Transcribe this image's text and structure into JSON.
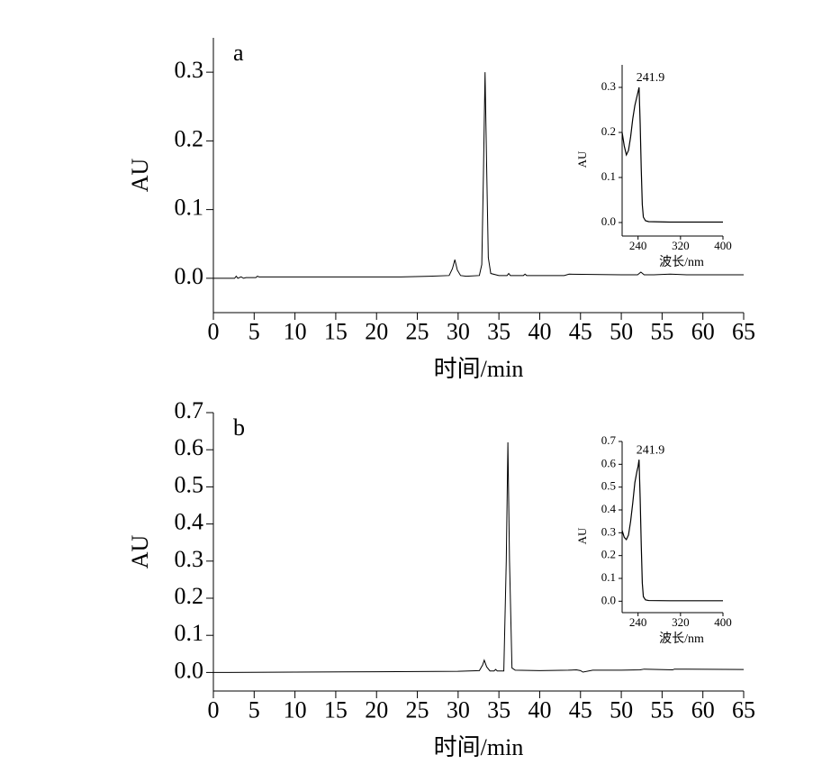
{
  "chart_data": [
    {
      "type": "line",
      "label": "a",
      "x_label": "时间/min",
      "y_label": "AU",
      "color": "#000000",
      "x": [
        0,
        2.6,
        2.8,
        3.0,
        3.4,
        3.7,
        4.0,
        5.2,
        5.4,
        5.6,
        15,
        23,
        26.5,
        28.9,
        29.3,
        29.6,
        29.9,
        30.3,
        31,
        32.6,
        32.9,
        33.1,
        33.3,
        33.5,
        33.7,
        34.0,
        35,
        36,
        36.2,
        36.4,
        38,
        38.2,
        38.4,
        43,
        43.6,
        50,
        52,
        52.4,
        52.8,
        54,
        56,
        58,
        65
      ],
      "values": [
        0,
        0,
        0.003,
        0,
        0.002,
        0,
        0.001,
        0.001,
        0.003,
        0.002,
        0.002,
        0.002,
        0.003,
        0.004,
        0.014,
        0.027,
        0.012,
        0.004,
        0.003,
        0.004,
        0.02,
        0.15,
        0.3,
        0.16,
        0.03,
        0.007,
        0.004,
        0.004,
        0.007,
        0.004,
        0.004,
        0.006,
        0.004,
        0.004,
        0.006,
        0.005,
        0.005,
        0.009,
        0.005,
        0.005,
        0.006,
        0.005,
        0.005
      ],
      "xlim": [
        0,
        65
      ],
      "xticks": [
        0,
        5,
        10,
        15,
        20,
        25,
        30,
        35,
        40,
        45,
        50,
        55,
        60,
        65
      ],
      "ylim": [
        -0.05,
        0.35
      ],
      "yticks": [
        {
          "value": 0,
          "label": "0.0"
        },
        0.1,
        0.2,
        0.3
      ]
    },
    {
      "type": "line",
      "x_label": "波长/nm",
      "y_label": "AU",
      "annotation": "241.9",
      "color": "#000000",
      "x": [
        210,
        214,
        218,
        222,
        226,
        230,
        234,
        238,
        240,
        241.9,
        244,
        246,
        248,
        250,
        254,
        260,
        300,
        400
      ],
      "values": [
        0.2,
        0.17,
        0.15,
        0.16,
        0.19,
        0.23,
        0.26,
        0.28,
        0.29,
        0.3,
        0.22,
        0.12,
        0.04,
        0.012,
        0.004,
        0.002,
        0.001,
        0.001
      ],
      "xlim": [
        210,
        400
      ],
      "xticks": [
        240,
        320,
        400
      ],
      "ylim": [
        -0.03,
        0.35
      ],
      "yticks": [
        {
          "value": 0,
          "label": "0.0"
        },
        0.1,
        0.2,
        0.3
      ]
    },
    {
      "type": "line",
      "label": "b",
      "x_label": "时间/min",
      "y_label": "AU",
      "color": "#000000",
      "x": [
        0,
        10,
        20,
        30,
        32.6,
        33.0,
        33.2,
        33.5,
        33.9,
        34.4,
        34.6,
        34.8,
        35.6,
        35.9,
        36.1,
        36.3,
        36.6,
        37,
        40,
        43.5,
        44.5,
        45,
        45.3,
        46.5,
        50,
        52.3,
        52.8,
        56.3,
        56.5,
        65
      ],
      "values": [
        0,
        0.001,
        0.002,
        0.003,
        0.005,
        0.02,
        0.033,
        0.015,
        0.004,
        0.004,
        0.008,
        0.004,
        0.004,
        0.3,
        0.62,
        0.3,
        0.012,
        0.006,
        0.005,
        0.006,
        0.007,
        0.005,
        0.001,
        0.006,
        0.006,
        0.007,
        0.009,
        0.007,
        0.009,
        0.008
      ],
      "xlim": [
        0,
        65
      ],
      "xticks": [
        0,
        5,
        10,
        15,
        20,
        25,
        30,
        35,
        40,
        45,
        50,
        55,
        60,
        65
      ],
      "ylim": [
        -0.05,
        0.7
      ],
      "yticks": [
        {
          "value": 0,
          "label": "0.0"
        },
        0.1,
        0.2,
        0.3,
        0.4,
        0.5,
        0.6,
        0.7
      ]
    },
    {
      "type": "line",
      "x_label": "波长/nm",
      "y_label": "AU",
      "annotation": "241.9",
      "color": "#000000",
      "x": [
        210,
        214,
        218,
        222,
        226,
        230,
        234,
        238,
        240,
        241.9,
        244,
        246,
        248,
        250,
        254,
        260,
        300,
        400
      ],
      "values": [
        0.31,
        0.28,
        0.27,
        0.29,
        0.35,
        0.43,
        0.52,
        0.57,
        0.59,
        0.62,
        0.45,
        0.25,
        0.08,
        0.02,
        0.006,
        0.003,
        0.002,
        0.002
      ],
      "xlim": [
        210,
        400
      ],
      "xticks": [
        240,
        320,
        400
      ],
      "ylim": [
        -0.05,
        0.7
      ],
      "yticks": [
        {
          "value": 0,
          "label": "0.0"
        },
        0.1,
        0.2,
        0.3,
        0.4,
        0.5,
        0.6,
        0.7
      ]
    }
  ]
}
